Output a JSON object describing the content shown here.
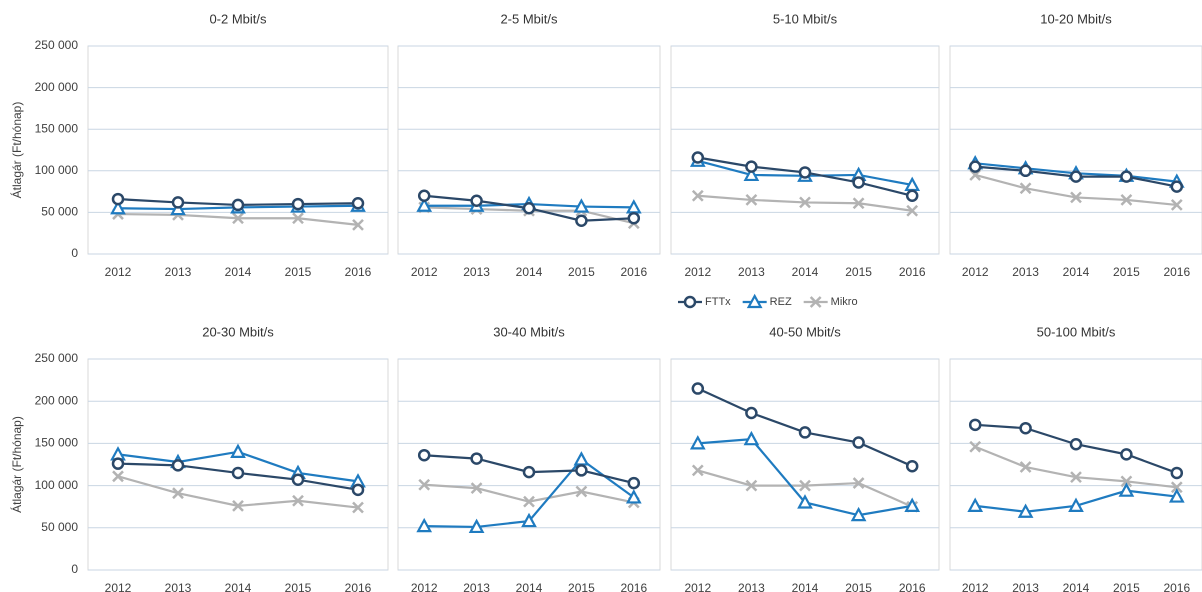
{
  "chart_data": [
    {
      "type": "line",
      "title": "0-2 Mbit/s",
      "ylabel": "Átlagár (Ft/hónap)",
      "categories": [
        "2012",
        "2013",
        "2014",
        "2015",
        "2016"
      ],
      "ylim": [
        0,
        250000
      ],
      "yticks": [
        0,
        {
          "value": 50000,
          "label": "50 000"
        },
        {
          "value": 100000,
          "label": "100 000"
        },
        {
          "value": 150000,
          "label": "150 000"
        },
        {
          "value": 200000,
          "label": "200 000"
        },
        {
          "value": 250000,
          "label": "250 000"
        }
      ],
      "series": [
        {
          "name": "FTTx",
          "color": "#2b4868",
          "marker": "circle",
          "values": [
            66000,
            62000,
            59000,
            60000,
            61000
          ]
        },
        {
          "name": "REZ",
          "color": "#1f7bc0",
          "marker": "triangle",
          "values": [
            55000,
            54000,
            56000,
            57000,
            58000
          ]
        },
        {
          "name": "Mikro",
          "color": "#b3b3b3",
          "marker": "cross",
          "values": [
            48000,
            47000,
            43000,
            43000,
            35000
          ]
        }
      ]
    },
    {
      "type": "line",
      "title": "2-5 Mbit/s",
      "categories": [
        "2012",
        "2013",
        "2014",
        "2015",
        "2016"
      ],
      "ylim": [
        0,
        250000
      ],
      "yticks": [
        0,
        50000,
        100000,
        150000,
        200000,
        250000
      ],
      "series": [
        {
          "name": "FTTx",
          "color": "#2b4868",
          "marker": "circle",
          "values": [
            70000,
            64000,
            55000,
            40000,
            43000
          ]
        },
        {
          "name": "REZ",
          "color": "#1f7bc0",
          "marker": "triangle",
          "values": [
            58000,
            58000,
            60000,
            57000,
            56000
          ]
        },
        {
          "name": "Mikro",
          "color": "#b3b3b3",
          "marker": "cross",
          "values": [
            56000,
            54000,
            52000,
            52000,
            37000
          ]
        }
      ]
    },
    {
      "type": "line",
      "title": "5-10 Mbit/s",
      "categories": [
        "2012",
        "2013",
        "2014",
        "2015",
        "2016"
      ],
      "ylim": [
        0,
        250000
      ],
      "yticks": [
        0,
        50000,
        100000,
        150000,
        200000,
        250000
      ],
      "series": [
        {
          "name": "FTTx",
          "color": "#2b4868",
          "marker": "circle",
          "values": [
            116000,
            105000,
            98000,
            86000,
            70000
          ]
        },
        {
          "name": "REZ",
          "color": "#1f7bc0",
          "marker": "triangle",
          "values": [
            112000,
            95000,
            94000,
            95000,
            83000
          ]
        },
        {
          "name": "Mikro",
          "color": "#b3b3b3",
          "marker": "cross",
          "values": [
            70000,
            65000,
            62000,
            61000,
            52000
          ]
        }
      ]
    },
    {
      "type": "line",
      "title": "10-20 Mbit/s",
      "categories": [
        "2012",
        "2013",
        "2014",
        "2015",
        "2016"
      ],
      "ylim": [
        0,
        250000
      ],
      "yticks": [
        0,
        50000,
        100000,
        150000,
        200000,
        250000
      ],
      "series": [
        {
          "name": "FTTx",
          "color": "#2b4868",
          "marker": "circle",
          "values": [
            105000,
            100000,
            93000,
            93000,
            81000
          ]
        },
        {
          "name": "REZ",
          "color": "#1f7bc0",
          "marker": "triangle",
          "values": [
            109000,
            103000,
            97000,
            94000,
            87000
          ]
        },
        {
          "name": "Mikro",
          "color": "#b3b3b3",
          "marker": "cross",
          "values": [
            95000,
            79000,
            68000,
            65000,
            59000
          ]
        }
      ]
    },
    {
      "type": "line",
      "title": "20-30 Mbit/s",
      "ylabel": "Átlagár (Ft/hónap)",
      "categories": [
        "2012",
        "2013",
        "2014",
        "2015",
        "2016"
      ],
      "ylim": [
        0,
        250000
      ],
      "yticks": [
        0,
        {
          "value": 50000,
          "label": "50 000"
        },
        {
          "value": 100000,
          "label": "100 000"
        },
        {
          "value": 150000,
          "label": "150 000"
        },
        {
          "value": 200000,
          "label": "200 000"
        },
        {
          "value": 250000,
          "label": "250 000"
        }
      ],
      "series": [
        {
          "name": "FTTx",
          "color": "#2b4868",
          "marker": "circle",
          "values": [
            126000,
            124000,
            115000,
            107000,
            95000
          ]
        },
        {
          "name": "REZ",
          "color": "#1f7bc0",
          "marker": "triangle",
          "values": [
            137000,
            128000,
            140000,
            115000,
            105000
          ]
        },
        {
          "name": "Mikro",
          "color": "#b3b3b3",
          "marker": "cross",
          "values": [
            111000,
            91000,
            76000,
            82000,
            74000
          ]
        }
      ]
    },
    {
      "type": "line",
      "title": "30-40 Mbit/s",
      "categories": [
        "2012",
        "2013",
        "2014",
        "2015",
        "2016"
      ],
      "ylim": [
        0,
        250000
      ],
      "yticks": [
        0,
        50000,
        100000,
        150000,
        200000,
        250000
      ],
      "series": [
        {
          "name": "FTTx",
          "color": "#2b4868",
          "marker": "circle",
          "values": [
            136000,
            132000,
            116000,
            118000,
            103000
          ]
        },
        {
          "name": "REZ",
          "color": "#1f7bc0",
          "marker": "triangle",
          "values": [
            52000,
            51000,
            58000,
            131000,
            86000
          ]
        },
        {
          "name": "Mikro",
          "color": "#b3b3b3",
          "marker": "cross",
          "values": [
            101000,
            97000,
            81000,
            93000,
            80000
          ]
        }
      ]
    },
    {
      "type": "line",
      "title": "40-50 Mbit/s",
      "categories": [
        "2012",
        "2013",
        "2014",
        "2015",
        "2016"
      ],
      "ylim": [
        0,
        250000
      ],
      "yticks": [
        0,
        50000,
        100000,
        150000,
        200000,
        250000
      ],
      "series": [
        {
          "name": "FTTx",
          "color": "#2b4868",
          "marker": "circle",
          "values": [
            215000,
            186000,
            163000,
            151000,
            123000
          ]
        },
        {
          "name": "REZ",
          "color": "#1f7bc0",
          "marker": "triangle",
          "values": [
            150000,
            155000,
            80000,
            65000,
            76000
          ]
        },
        {
          "name": "Mikro",
          "color": "#b3b3b3",
          "marker": "cross",
          "values": [
            118000,
            100000,
            100000,
            103000,
            75000
          ]
        }
      ]
    },
    {
      "type": "line",
      "title": "50-100 Mbit/s",
      "categories": [
        "2012",
        "2013",
        "2014",
        "2015",
        "2016"
      ],
      "ylim": [
        0,
        250000
      ],
      "yticks": [
        0,
        50000,
        100000,
        150000,
        200000,
        250000
      ],
      "series": [
        {
          "name": "FTTx",
          "color": "#2b4868",
          "marker": "circle",
          "values": [
            172000,
            168000,
            149000,
            137000,
            115000
          ]
        },
        {
          "name": "REZ",
          "color": "#1f7bc0",
          "marker": "triangle",
          "values": [
            76000,
            69000,
            76000,
            94000,
            87000
          ]
        },
        {
          "name": "Mikro",
          "color": "#b3b3b3",
          "marker": "cross",
          "values": [
            146000,
            122000,
            110000,
            105000,
            98000
          ]
        }
      ]
    }
  ]
}
